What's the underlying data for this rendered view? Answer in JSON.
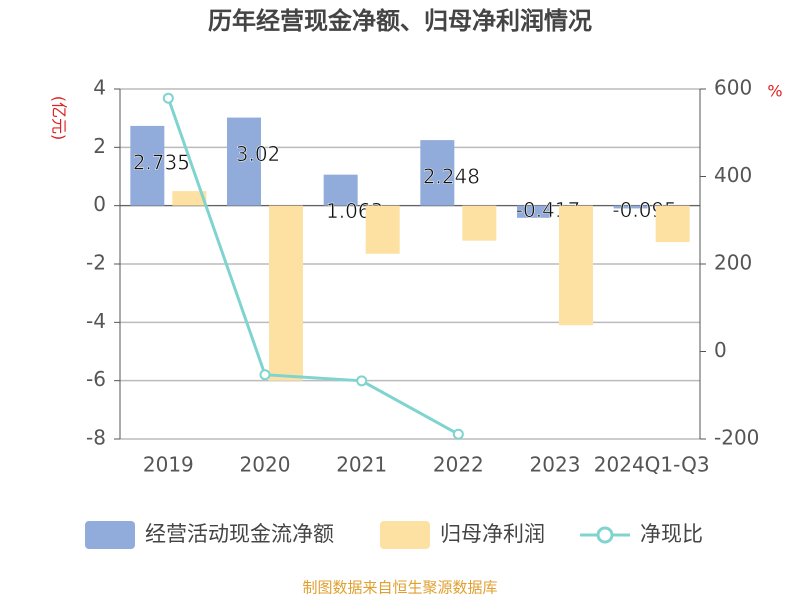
{
  "chart_data": {
    "type": "bar-line",
    "title": "历年经营现金净额、归母净利润情况",
    "y_label": "(亿元)",
    "y2_label": "%",
    "footer": "制图数据来自恒生聚源数据库",
    "categories": [
      "2019",
      "2020",
      "2021",
      "2022",
      "2023",
      "2024Q1-Q3"
    ],
    "series": [
      {
        "name": "经营活动现金流净额",
        "type": "bar",
        "color": "#91acdb",
        "values": [
          2.735,
          3.02,
          1.063,
          2.248,
          -0.417,
          -0.095
        ]
      },
      {
        "name": "归母净利润",
        "type": "bar",
        "color": "#fde1a2",
        "values": [
          0.5,
          -6.0,
          -1.65,
          -1.2,
          -4.1,
          -1.25
        ]
      },
      {
        "name": "净现比",
        "type": "line",
        "axis": "y2",
        "color": "#80d4d0",
        "values": [
          579,
          -53,
          -67,
          -189,
          null,
          null
        ]
      }
    ],
    "ylim": [
      -8,
      4
    ],
    "yticks": [
      -8,
      -6,
      -4,
      -2,
      0,
      2,
      4
    ],
    "y2lim": [
      -200,
      600
    ],
    "y2ticks": [
      -200,
      0,
      200,
      400,
      600
    ],
    "grid": true
  }
}
